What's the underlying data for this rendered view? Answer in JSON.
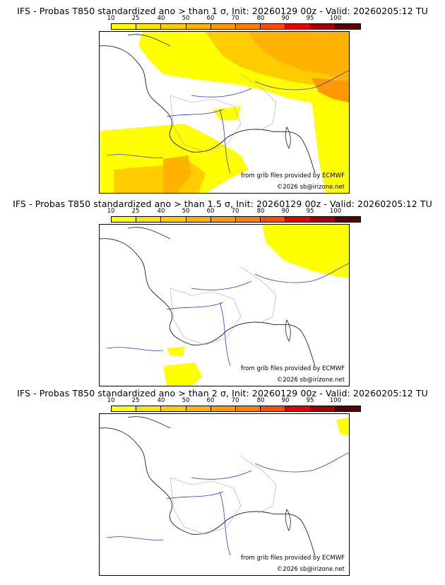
{
  "colors": {
    "scale": [
      "#ffff00",
      "#ffe600",
      "#ffcc00",
      "#ffb300",
      "#ff9900",
      "#ff7f00",
      "#ff4d00",
      "#e60000",
      "#a50000",
      "#5a0000"
    ],
    "coast": "#222222",
    "rivers": "#3333cc",
    "borders": "#aaaaaa"
  },
  "scale_labels": [
    "10",
    "25",
    "40",
    "50",
    "60",
    "70",
    "80",
    "90",
    "95",
    "100"
  ],
  "panels": [
    {
      "title": "IFS - Probas T850  standardized ano > than 1 σ, Init: 20260129 00z - Valid: 20260205:12 TU",
      "credit": "from grib files provided by ECMWF",
      "copyright": "©2026 sb@irizone.net"
    },
    {
      "title": "IFS - Probas T850  standardized ano > than 1.5 σ, Init: 20260129 00z - Valid: 20260205:12 TU",
      "credit": "from grib files provided by ECMWF",
      "copyright": "©2026 sb@irizone.net"
    },
    {
      "title": "IFS - Probas T850  standardized ano > than 2 σ, Init: 20260129 00z - Valid: 20260205:12 TU",
      "credit": "from grib files provided by ECMWF",
      "copyright": "©2026 sb@irizone.net"
    }
  ]
}
